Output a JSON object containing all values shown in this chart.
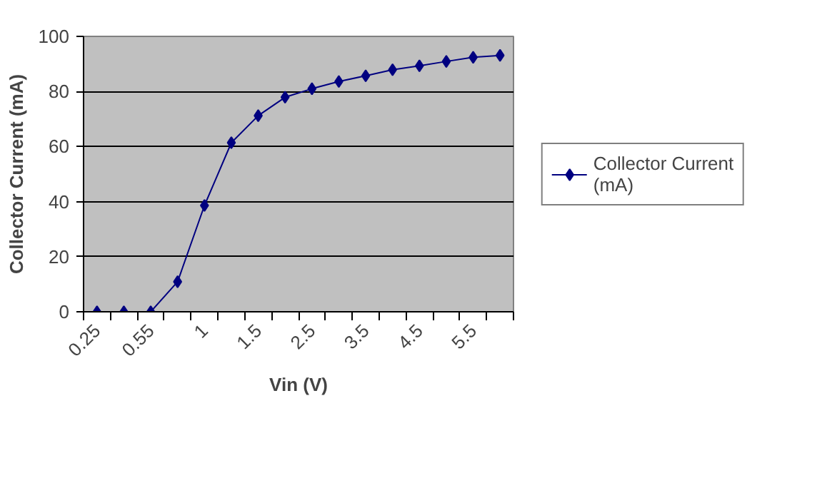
{
  "chart_data": {
    "type": "line",
    "xlabel": "Vin (V)",
    "ylabel": "Collector Current (mA)",
    "categories": [
      "0.25",
      null,
      "0.55",
      null,
      "1",
      null,
      "1.5",
      null,
      "2.5",
      null,
      "3.5",
      null,
      "4.5",
      null,
      "5.5",
      null
    ],
    "series": [
      {
        "name": "Collector Current (mA)",
        "color": "#000080",
        "values": [
          0,
          0,
          0,
          10.9,
          38.6,
          61.4,
          71.2,
          77.9,
          81.0,
          83.6,
          85.7,
          87.9,
          89.3,
          90.9,
          92.4,
          93.1
        ]
      }
    ],
    "ylim": [
      0,
      100
    ],
    "yticks": [
      0,
      20,
      40,
      60,
      80,
      100
    ],
    "grid": "y",
    "legend": "right",
    "marker": "diamond",
    "line_style": "solid"
  }
}
